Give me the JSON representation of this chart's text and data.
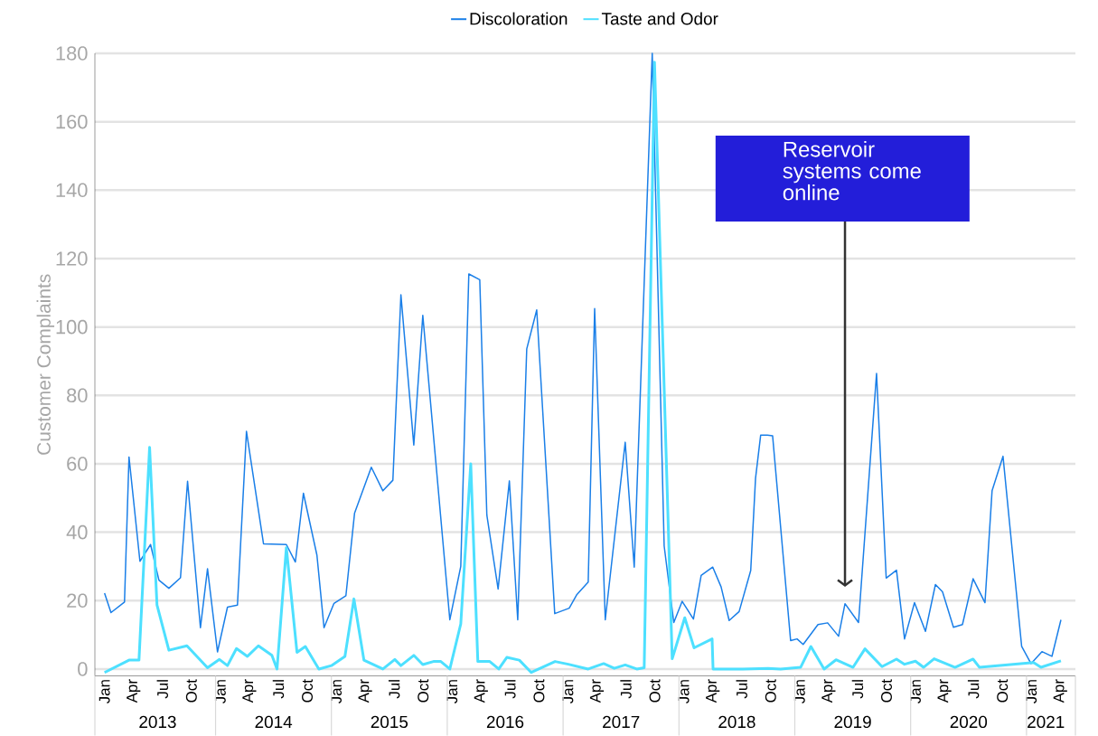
{
  "chart_data": {
    "type": "line",
    "ylabel": "Customer Complaints",
    "xlim": [
      "2012-12-01",
      "2021-05-18"
    ],
    "ylim": [
      -2,
      180
    ],
    "yticks": [
      0,
      20,
      40,
      60,
      80,
      100,
      120,
      140,
      160,
      180
    ],
    "grid": "y",
    "legend": "top",
    "xticks": [
      {
        "value": "2013-01",
        "label": "Jan"
      },
      {
        "value": "2013-04",
        "label": "Apr"
      },
      {
        "value": "2013-07",
        "label": "Jul"
      },
      {
        "value": "2013-10",
        "label": "Oct"
      },
      {
        "value": "2014-01",
        "label": "Jan"
      },
      {
        "value": "2014-04",
        "label": "Apr"
      },
      {
        "value": "2014-07",
        "label": "Jul"
      },
      {
        "value": "2014-10",
        "label": "Oct"
      },
      {
        "value": "2015-01",
        "label": "Jan"
      },
      {
        "value": "2015-04",
        "label": "Apr"
      },
      {
        "value": "2015-07",
        "label": "Jul"
      },
      {
        "value": "2015-10",
        "label": "Oct"
      },
      {
        "value": "2016-01",
        "label": "Jan"
      },
      {
        "value": "2016-04",
        "label": "Apr"
      },
      {
        "value": "2016-07",
        "label": "Jul"
      },
      {
        "value": "2016-10",
        "label": "Oct"
      },
      {
        "value": "2017-01",
        "label": "Jan"
      },
      {
        "value": "2017-04",
        "label": "Apr"
      },
      {
        "value": "2017-07",
        "label": "Jul"
      },
      {
        "value": "2017-10",
        "label": "Oct"
      },
      {
        "value": "2018-01",
        "label": "Jan"
      },
      {
        "value": "2018-04",
        "label": "Apr"
      },
      {
        "value": "2018-07",
        "label": "Jul"
      },
      {
        "value": "2018-10",
        "label": "Oct"
      },
      {
        "value": "2019-01",
        "label": "Jan"
      },
      {
        "value": "2019-04",
        "label": "Apr"
      },
      {
        "value": "2019-07",
        "label": "Jul"
      },
      {
        "value": "2019-10",
        "label": "Oct"
      },
      {
        "value": "2020-01",
        "label": "Jan"
      },
      {
        "value": "2020-04",
        "label": "Apr"
      },
      {
        "value": "2020-07",
        "label": "Jul"
      },
      {
        "value": "2020-10",
        "label": "Oct"
      },
      {
        "value": "2021-01",
        "label": "Jan"
      },
      {
        "value": "2021-04",
        "label": "Apr"
      }
    ],
    "x2lim": [
      "2012-12-01",
      "2021-05-18"
    ],
    "x2ticks": [
      {
        "value": "2013-06-16",
        "label": "2013"
      },
      {
        "value": "2014-06-16",
        "label": "2014"
      },
      {
        "value": "2015-06-16",
        "label": "2015"
      },
      {
        "value": "2016-06-16",
        "label": "2016"
      },
      {
        "value": "2017-06-16",
        "label": "2017"
      },
      {
        "value": "2018-06-16",
        "label": "2018"
      },
      {
        "value": "2019-06-16",
        "label": "2019"
      },
      {
        "value": "2020-06-16",
        "label": "2020"
      },
      {
        "value": "2021-02-16",
        "label": "2021"
      }
    ],
    "annotations": [
      "Reservoir systems come online"
    ],
    "series": [
      {
        "name": "Discoloration",
        "color": "#1a7fe8",
        "x": [
          "2013-01-01",
          "2013-01-21",
          "2013-03-03",
          "2013-03-17",
          "2013-04-21",
          "2013-05-24",
          "2013-06-20",
          "2013-07-21",
          "2013-08-27",
          "2013-09-19",
          "2013-10-29",
          "2013-11-21",
          "2013-12-22",
          "2014-01-23",
          "2014-02-24",
          "2014-03-22",
          "2014-05-15",
          "2014-07-26",
          "2014-08-24",
          "2014-09-19",
          "2014-11-01",
          "2014-11-23",
          "2014-12-24",
          "2015-02-01",
          "2015-02-28",
          "2015-04-20",
          "2015-05-26",
          "2015-06-27",
          "2015-07-22",
          "2015-09-02",
          "2015-09-30",
          "2015-12-24",
          "2016-01-28",
          "2016-02-23",
          "2016-03-27",
          "2016-04-19",
          "2016-05-24",
          "2016-06-29",
          "2016-07-25",
          "2016-08-23",
          "2016-09-24",
          "2016-11-20",
          "2017-01-05",
          "2017-01-29",
          "2017-03-04",
          "2017-03-24",
          "2017-04-27",
          "2017-06-29",
          "2017-07-27",
          "2017-09-23",
          "2017-10-30",
          "2017-11-30",
          "2017-12-26",
          "2018-02-01",
          "2018-02-25",
          "2018-04-01",
          "2018-04-27",
          "2018-05-22",
          "2018-06-23",
          "2018-07-29",
          "2018-08-14",
          "2018-08-30",
          "2018-09-21",
          "2018-10-07",
          "2018-12-03",
          "2018-12-23",
          "2019-01-12",
          "2019-02-28",
          "2019-03-28",
          "2019-05-02",
          "2019-05-22",
          "2019-07-04",
          "2019-08-30",
          "2019-09-30",
          "2019-11-02",
          "2019-11-27",
          "2019-12-28",
          "2020-02-02",
          "2020-03-03",
          "2020-03-25",
          "2020-04-29",
          "2020-05-27",
          "2020-06-30",
          "2020-08-07",
          "2020-08-29",
          "2020-10-03",
          "2020-12-01",
          "2020-12-30",
          "2021-02-04",
          "2021-03-05",
          "2021-04-03"
        ],
        "values": [
          22.2,
          16.5,
          19.6,
          62,
          31.5,
          36.4,
          26,
          23.6,
          26.7,
          54.9,
          12.1,
          29.3,
          5,
          18.1,
          18.7,
          69.5,
          36.6,
          36.4,
          31.3,
          51.4,
          33.3,
          12.1,
          19.2,
          21.4,
          45.6,
          59,
          52.1,
          55.2,
          109.4,
          65.5,
          103.4,
          14.4,
          30,
          115.5,
          113.8,
          45,
          23.4,
          55,
          14.4,
          93.6,
          105,
          16.2,
          17.8,
          21.8,
          25.4,
          105.4,
          14.4,
          66.3,
          29.8,
          180,
          36,
          13.6,
          19.8,
          14.6,
          27.4,
          29.8,
          24,
          14.2,
          16.8,
          28.8,
          55.8,
          68.4,
          68.4,
          68.2,
          8.3,
          8.8,
          7.2,
          13,
          13.5,
          9.6,
          19.1,
          13.6,
          86.4,
          26.6,
          28.9,
          8.8,
          19.4,
          11,
          24.7,
          22.6,
          12.2,
          13,
          26.4,
          19.4,
          52.1,
          62.2,
          6.6,
          1.6,
          5.1,
          3.7,
          14.4
        ]
      },
      {
        "name": "Taste and Odor",
        "color": "#4de0ff",
        "x": [
          "2013-01-01",
          "2013-03-17",
          "2013-04-18",
          "2013-05-21",
          "2013-06-14",
          "2013-07-21",
          "2013-09-17",
          "2013-11-21",
          "2013-12-28",
          "2014-01-23",
          "2014-02-21",
          "2014-03-25",
          "2014-04-29",
          "2014-06-11",
          "2014-06-27",
          "2014-07-26",
          "2014-08-29",
          "2014-09-25",
          "2014-11-07",
          "2014-12-16",
          "2015-01-28",
          "2015-02-26",
          "2015-03-27",
          "2015-05-26",
          "2015-07-03",
          "2015-07-22",
          "2015-09-02",
          "2015-09-30",
          "2015-11-03",
          "2015-11-26",
          "2015-12-24",
          "2016-01-28",
          "2016-02-29",
          "2016-03-21",
          "2016-04-28",
          "2016-05-26",
          "2016-06-21",
          "2016-07-30",
          "2016-09-07",
          "2016-11-21",
          "2017-01-02",
          "2017-03-04",
          "2017-04-22",
          "2017-05-25",
          "2017-06-29",
          "2017-08-05",
          "2017-08-28",
          "2017-09-30",
          "2017-11-25",
          "2018-01-04",
          "2018-02-03",
          "2018-03-29",
          "2018-04-02",
          "2018-05-19",
          "2018-07-04",
          "2018-09-23",
          "2018-11-02",
          "2019-01-04",
          "2019-02-06",
          "2019-03-17",
          "2019-04-24",
          "2019-06-17",
          "2019-07-24",
          "2019-09-17",
          "2019-11-02",
          "2019-11-27",
          "2019-12-31",
          "2020-01-26",
          "2020-02-29",
          "2020-05-04",
          "2020-06-30",
          "2020-07-20",
          "2021-01-08",
          "2021-02-01",
          "2021-04-03"
        ],
        "values": [
          -1,
          2.6,
          2.6,
          64.8,
          18.7,
          5.5,
          6.8,
          0.4,
          2.8,
          1,
          6,
          3.7,
          6.8,
          4,
          0,
          35.5,
          4.9,
          6.6,
          0,
          1,
          3.7,
          20.5,
          2.6,
          0,
          2.8,
          1,
          4,
          1.3,
          2.2,
          2.2,
          0,
          13.2,
          60,
          2.2,
          2.2,
          0,
          3.4,
          2.6,
          -1,
          2.2,
          1.4,
          0,
          1.6,
          0.2,
          1.2,
          0,
          0.4,
          177.4,
          3,
          15,
          6.2,
          8.8,
          0,
          0,
          0,
          0.2,
          0,
          0.5,
          6.6,
          0,
          2.7,
          0.5,
          5.9,
          0.7,
          2.9,
          1.4,
          2.3,
          0.5,
          3,
          0.5,
          2.9,
          0.5,
          1.9,
          0.5,
          2.4
        ]
      }
    ]
  }
}
